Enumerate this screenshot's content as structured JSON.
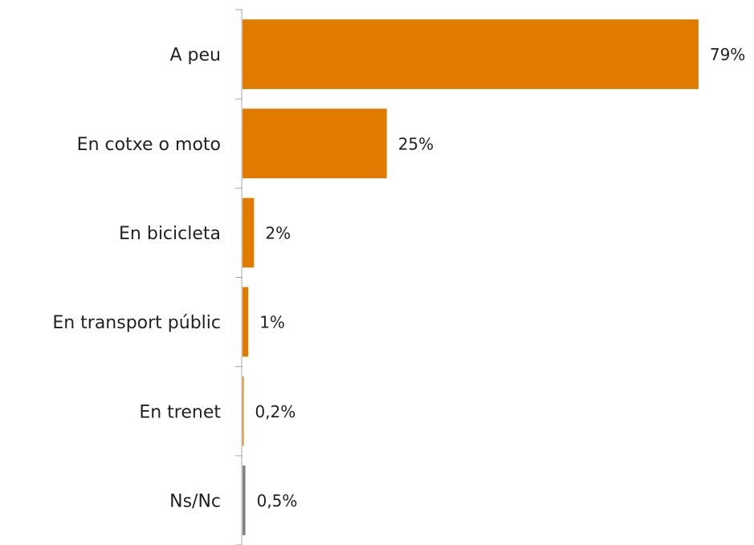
{
  "chart_data": {
    "type": "bar",
    "orientation": "horizontal",
    "categories": [
      "A peu",
      "En cotxe o moto",
      "En bicicleta",
      "En transport públic",
      "En trenet",
      "Ns/Nc"
    ],
    "values": [
      79,
      25,
      2,
      1,
      0.2,
      0.5
    ],
    "value_labels": [
      "79%",
      "25%",
      "2%",
      "1%",
      "0,2%",
      "0,5%"
    ],
    "colors": [
      "#e07b00",
      "#e07b00",
      "#e07b00",
      "#e07b00",
      "#e07b00",
      "#808080"
    ],
    "xlim": [
      0,
      85
    ]
  }
}
